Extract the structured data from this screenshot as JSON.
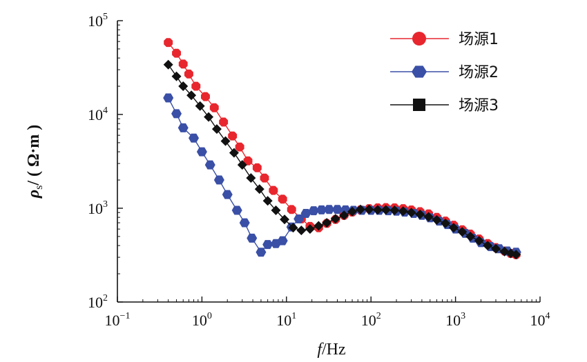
{
  "chart_data": {
    "type": "line",
    "x_scale": "log",
    "y_scale": "log",
    "xlabel": {
      "italic": "f",
      "rest": "/Hz"
    },
    "ylabel": {
      "italic": "ρ",
      "sub": "s",
      "rest": "/ ( Ω·m )"
    },
    "xlim": [
      0.1,
      10000
    ],
    "ylim": [
      100,
      100000
    ],
    "x_ticks": [
      {
        "base": "10",
        "exp": "−1"
      },
      {
        "base": "10",
        "exp": "0"
      },
      {
        "base": "10",
        "exp": "1"
      },
      {
        "base": "10",
        "exp": "2"
      },
      {
        "base": "10",
        "exp": "3"
      },
      {
        "base": "10",
        "exp": "4"
      }
    ],
    "y_ticks": [
      {
        "base": "10",
        "exp": "2"
      },
      {
        "base": "10",
        "exp": "3"
      },
      {
        "base": "10",
        "exp": "4"
      },
      {
        "base": "10",
        "exp": "5"
      }
    ],
    "legend_position": "top-right",
    "grid": false,
    "series": [
      {
        "name": "场源1",
        "color": "#e8262e",
        "marker": "octagon",
        "points": [
          [
            0.4,
            58500
          ],
          [
            0.5,
            45000
          ],
          [
            0.6,
            34500
          ],
          [
            0.7,
            27000
          ],
          [
            0.85,
            20000
          ],
          [
            1.1,
            15500
          ],
          [
            1.4,
            11800
          ],
          [
            1.8,
            8300
          ],
          [
            2.3,
            5900
          ],
          [
            2.8,
            4500
          ],
          [
            3.5,
            3200
          ],
          [
            4.5,
            2700
          ],
          [
            5.5,
            2100
          ],
          [
            7,
            1550
          ],
          [
            9,
            1250
          ],
          [
            11.5,
            970
          ],
          [
            15,
            770
          ],
          [
            19,
            640
          ],
          [
            24,
            620
          ],
          [
            30,
            690
          ],
          [
            38,
            760
          ],
          [
            48,
            840
          ],
          [
            60,
            910
          ],
          [
            75,
            960
          ],
          [
            95,
            990
          ],
          [
            120,
            1010
          ],
          [
            150,
            1015
          ],
          [
            190,
            1010
          ],
          [
            240,
            990
          ],
          [
            300,
            960
          ],
          [
            380,
            920
          ],
          [
            480,
            870
          ],
          [
            600,
            800
          ],
          [
            760,
            730
          ],
          [
            950,
            660
          ],
          [
            1200,
            590
          ],
          [
            1500,
            530
          ],
          [
            1900,
            470
          ],
          [
            2400,
            420
          ],
          [
            3000,
            380
          ],
          [
            3800,
            350
          ],
          [
            4500,
            330
          ],
          [
            5200,
            320
          ]
        ]
      },
      {
        "name": "场源2",
        "color": "#3a4fa6",
        "marker": "hexagon",
        "points": [
          [
            0.4,
            15000
          ],
          [
            0.5,
            10200
          ],
          [
            0.6,
            7200
          ],
          [
            0.8,
            5600
          ],
          [
            1.0,
            4000
          ],
          [
            1.25,
            2900
          ],
          [
            1.6,
            2000
          ],
          [
            2.0,
            1400
          ],
          [
            2.6,
            950
          ],
          [
            3.2,
            700
          ],
          [
            3.9,
            480
          ],
          [
            5.0,
            340
          ],
          [
            6.0,
            410
          ],
          [
            7.5,
            420
          ],
          [
            9,
            450
          ],
          [
            11.5,
            630
          ],
          [
            14,
            770
          ],
          [
            17,
            880
          ],
          [
            21,
            940
          ],
          [
            26,
            960
          ],
          [
            32,
            970
          ],
          [
            40,
            970
          ],
          [
            50,
            960
          ],
          [
            62,
            950
          ],
          [
            78,
            950
          ],
          [
            100,
            950
          ],
          [
            125,
            950
          ],
          [
            160,
            940
          ],
          [
            200,
            930
          ],
          [
            250,
            910
          ],
          [
            320,
            880
          ],
          [
            400,
            840
          ],
          [
            500,
            790
          ],
          [
            640,
            730
          ],
          [
            800,
            670
          ],
          [
            1000,
            600
          ],
          [
            1300,
            540
          ],
          [
            1600,
            480
          ],
          [
            2000,
            430
          ],
          [
            2600,
            390
          ],
          [
            3300,
            370
          ],
          [
            4100,
            350
          ],
          [
            5200,
            340
          ]
        ]
      },
      {
        "name": "场源3",
        "color": "#111111",
        "marker": "diamond",
        "points": [
          [
            0.4,
            34000
          ],
          [
            0.5,
            25500
          ],
          [
            0.6,
            20000
          ],
          [
            0.75,
            16000
          ],
          [
            0.95,
            12300
          ],
          [
            1.2,
            9400
          ],
          [
            1.5,
            7000
          ],
          [
            1.9,
            5200
          ],
          [
            2.4,
            3900
          ],
          [
            3.0,
            2900
          ],
          [
            3.8,
            2100
          ],
          [
            4.8,
            1600
          ],
          [
            6.0,
            1200
          ],
          [
            7.5,
            950
          ],
          [
            9.5,
            760
          ],
          [
            12,
            620
          ],
          [
            15,
            580
          ],
          [
            19,
            600
          ],
          [
            24,
            650
          ],
          [
            30,
            700
          ],
          [
            38,
            770
          ],
          [
            48,
            840
          ],
          [
            60,
            920
          ],
          [
            75,
            970
          ],
          [
            95,
            970
          ],
          [
            120,
            960
          ],
          [
            150,
            960
          ],
          [
            190,
            950
          ],
          [
            240,
            930
          ],
          [
            300,
            900
          ],
          [
            380,
            860
          ],
          [
            480,
            810
          ],
          [
            600,
            750
          ],
          [
            760,
            690
          ],
          [
            950,
            620
          ],
          [
            1200,
            560
          ],
          [
            1500,
            500
          ],
          [
            1900,
            450
          ],
          [
            2400,
            400
          ],
          [
            3000,
            370
          ],
          [
            3800,
            345
          ],
          [
            4500,
            330
          ],
          [
            5200,
            320
          ]
        ]
      }
    ]
  }
}
